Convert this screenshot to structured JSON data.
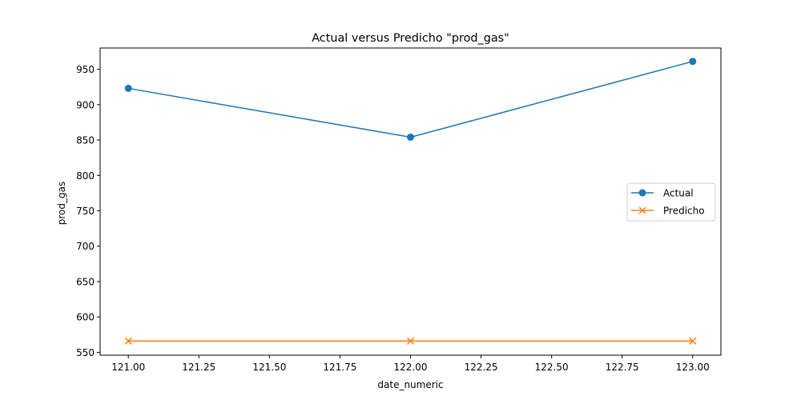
{
  "chart_data": {
    "type": "line",
    "title": "Actual versus Predicho \"prod_gas\"",
    "xlabel": "date_numeric",
    "ylabel": "prod_gas",
    "xlim": [
      120.9,
      123.1
    ],
    "ylim": [
      546,
      980
    ],
    "xticks": [
      121.0,
      121.25,
      121.5,
      121.75,
      122.0,
      122.25,
      122.5,
      122.75,
      123.0
    ],
    "xtick_labels": [
      "121.00",
      "121.25",
      "121.50",
      "121.75",
      "122.00",
      "122.25",
      "122.50",
      "122.75",
      "123.00"
    ],
    "yticks": [
      550,
      600,
      650,
      700,
      750,
      800,
      850,
      900,
      950
    ],
    "ytick_labels": [
      "550",
      "600",
      "650",
      "700",
      "750",
      "800",
      "850",
      "900",
      "950"
    ],
    "grid": false,
    "legend_position": "center-right",
    "series": [
      {
        "name": "Actual",
        "x": [
          121,
          122,
          123
        ],
        "y": [
          923,
          854,
          961
        ],
        "color": "#1f77b4",
        "marker": "circle"
      },
      {
        "name": "Predicho",
        "x": [
          121,
          122,
          123
        ],
        "y": [
          566,
          566,
          566
        ],
        "color": "#ff7f0e",
        "marker": "x"
      }
    ]
  }
}
